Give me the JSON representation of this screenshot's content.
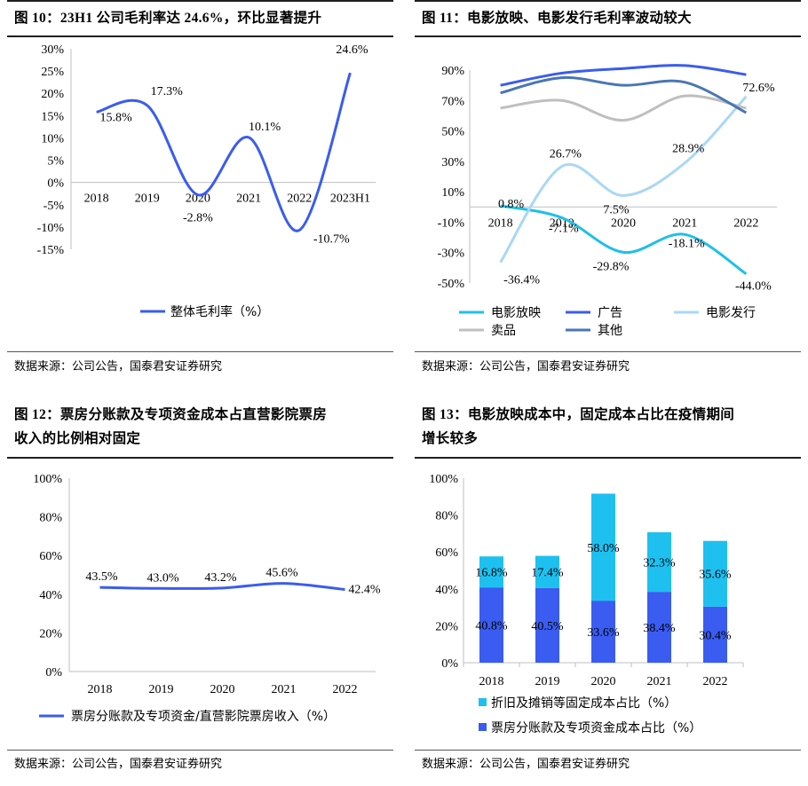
{
  "panels": [
    {
      "title": "图 10：23H1 公司毛利率达 24.6%，环比显著提升",
      "source": "数据来源：公司公告，国泰君安证券研究"
    },
    {
      "title": "图 11：电影放映、电影发行毛利率波动较大",
      "source": "数据来源：公司公告，国泰君安证券研究"
    },
    {
      "title_line1": "图 12：票房分账款及专项资金成本占直营影院票房",
      "title_line2": "收入的比例相对固定",
      "source": "数据来源：公司公告，国泰君安证券研究"
    },
    {
      "title_line1": "图 13：电影放映成本中，固定成本占比在疫情期间",
      "title_line2": "增长较多",
      "source": "数据来源：公司公告，国泰君安证券研究"
    }
  ],
  "chart_data": [
    {
      "type": "line",
      "categories": [
        "2018",
        "2019",
        "2020",
        "2021",
        "2022",
        "2023H1"
      ],
      "series": [
        {
          "name": "整体毛利率（%）",
          "values": [
            15.8,
            17.3,
            -2.8,
            10.1,
            -10.7,
            24.6
          ],
          "labels": [
            "15.8%",
            "17.3%",
            "-2.8%",
            "10.1%",
            "-10.7%",
            "24.6%"
          ],
          "color": "#3a5cf0"
        }
      ],
      "yticks": [
        "30%",
        "25%",
        "20%",
        "15%",
        "10%",
        "5%",
        "0%",
        "-5%",
        "-10%",
        "-15%"
      ],
      "ylim": [
        -15,
        30
      ],
      "legend": "bottom"
    },
    {
      "type": "line",
      "categories": [
        "2018",
        "2019",
        "2020",
        "2021",
        "2022"
      ],
      "series": [
        {
          "name": "电影放映",
          "values": [
            0.8,
            -7.1,
            -29.8,
            -18.1,
            -44.0
          ],
          "labels": [
            "0.8%",
            "-7.1%",
            "-29.8%",
            "-18.1%",
            "-44.0%"
          ],
          "color": "#1ec0e8"
        },
        {
          "name": "广告",
          "values": [
            80,
            88,
            91,
            93,
            87
          ],
          "color": "#3a5cf0"
        },
        {
          "name": "电影发行",
          "values": [
            -36.4,
            26.7,
            7.5,
            28.9,
            72.6
          ],
          "labels": [
            "-36.4%",
            "26.7%",
            "7.5%",
            "28.9%",
            "72.6%"
          ],
          "color": "#a9d8f5"
        },
        {
          "name": "卖品",
          "values": [
            65,
            70,
            57,
            73,
            65
          ],
          "color": "#bfbfbf"
        },
        {
          "name": "其他",
          "values": [
            75,
            85,
            80,
            82,
            62
          ],
          "color": "#4a76b4"
        }
      ],
      "yticks": [
        "90%",
        "70%",
        "50%",
        "30%",
        "10%",
        "-10%",
        "-30%",
        "-50%"
      ],
      "ylim": [
        -50,
        90
      ],
      "legend": "bottom"
    },
    {
      "type": "line",
      "categories": [
        "2018",
        "2019",
        "2020",
        "2021",
        "2022"
      ],
      "series": [
        {
          "name": "票房分账款及专项资金/直营影院票房收入（%）",
          "values": [
            43.5,
            43.0,
            43.2,
            45.6,
            42.4
          ],
          "labels": [
            "43.5%",
            "43.0%",
            "43.2%",
            "45.6%",
            "42.4%"
          ],
          "color": "#3a5cf0"
        }
      ],
      "yticks": [
        "100%",
        "80%",
        "60%",
        "40%",
        "20%",
        "0%"
      ],
      "ylim": [
        0,
        100
      ],
      "legend": "bottom"
    },
    {
      "type": "bar",
      "stacked": true,
      "categories": [
        "2018",
        "2019",
        "2020",
        "2021",
        "2022"
      ],
      "series": [
        {
          "name": "票房分账款及专项资金成本占比（%）",
          "values": [
            40.8,
            40.5,
            33.6,
            38.4,
            30.4
          ],
          "labels": [
            "40.8%",
            "40.5%",
            "33.6%",
            "38.4%",
            "30.4%"
          ],
          "color": "#3a5cf0"
        },
        {
          "name": "折旧及摊销等固定成本占比（%）",
          "values": [
            16.8,
            17.4,
            58.0,
            32.3,
            35.6
          ],
          "labels": [
            "16.8%",
            "17.4%",
            "58.0%",
            "32.3%",
            "35.6%"
          ],
          "color": "#1ec0f0"
        }
      ],
      "yticks": [
        "100%",
        "80%",
        "60%",
        "40%",
        "20%",
        "0%"
      ],
      "ylim": [
        0,
        100
      ],
      "legend": "bottom"
    }
  ]
}
